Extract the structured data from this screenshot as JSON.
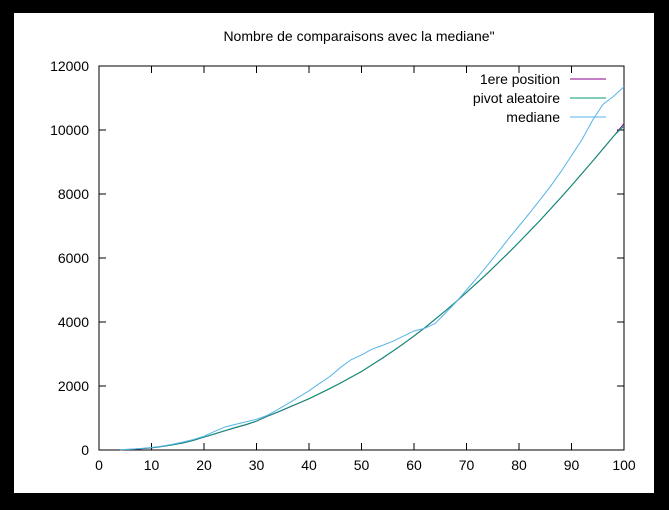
{
  "chart_data": {
    "type": "line",
    "title": "Nombre de comparaisons avec la mediane\"",
    "xlabel": "",
    "ylabel": "",
    "xlim": [
      0,
      100
    ],
    "ylim": [
      0,
      12000
    ],
    "xticks": [
      0,
      10,
      20,
      30,
      40,
      50,
      60,
      70,
      80,
      90,
      100
    ],
    "yticks": [
      0,
      2000,
      4000,
      6000,
      8000,
      10000,
      12000
    ],
    "grid": false,
    "legend_position": "top-right",
    "series": [
      {
        "name": "1ere position",
        "color": "#8b008b",
        "x": [
          4,
          6,
          8,
          10,
          12,
          14,
          16,
          18,
          20,
          22,
          24,
          26,
          28,
          30,
          32,
          34,
          36,
          38,
          40,
          42,
          44,
          46,
          48,
          50,
          52,
          54,
          56,
          58,
          60,
          62,
          64,
          66,
          68,
          70,
          72,
          74,
          76,
          78,
          80,
          82,
          84,
          86,
          88,
          90,
          92,
          94,
          96,
          98,
          100
        ],
        "y": [
          8,
          20,
          40,
          68,
          108,
          160,
          220,
          300,
          400,
          500,
          600,
          700,
          790,
          900,
          1050,
          1180,
          1320,
          1460,
          1600,
          1760,
          1920,
          2090,
          2270,
          2450,
          2660,
          2870,
          3090,
          3320,
          3560,
          3810,
          4080,
          4350,
          4630,
          4920,
          5220,
          5520,
          5840,
          6160,
          6490,
          6830,
          7170,
          7530,
          7890,
          8260,
          8640,
          9020,
          9410,
          9800,
          10200
        ]
      },
      {
        "name": "pivot aleatoire",
        "color": "#009e73",
        "x": [
          4,
          6,
          8,
          10,
          12,
          14,
          16,
          18,
          20,
          22,
          24,
          26,
          28,
          30,
          32,
          34,
          36,
          38,
          40,
          42,
          44,
          46,
          48,
          50,
          52,
          54,
          56,
          58,
          60,
          62,
          64,
          66,
          68,
          70,
          72,
          74,
          76,
          78,
          80,
          82,
          84,
          86,
          88,
          90,
          92,
          94,
          96,
          98,
          100
        ],
        "y": [
          9,
          22,
          42,
          70,
          110,
          162,
          224,
          306,
          404,
          505,
          605,
          706,
          796,
          905,
          1056,
          1186,
          1326,
          1466,
          1606,
          1766,
          1926,
          2096,
          2276,
          2456,
          2666,
          2876,
          3096,
          3326,
          3566,
          3816,
          4086,
          4356,
          4636,
          4926,
          5226,
          5526,
          5846,
          6166,
          6496,
          6836,
          7176,
          7536,
          7896,
          8266,
          8646,
          9026,
          9416,
          9806,
          10130
        ]
      },
      {
        "name": "mediane",
        "color": "#56b4e9",
        "x": [
          4,
          6,
          8,
          10,
          12,
          14,
          16,
          18,
          20,
          22,
          24,
          26,
          28,
          30,
          32,
          34,
          36,
          38,
          40,
          42,
          44,
          46,
          48,
          50,
          52,
          54,
          56,
          58,
          60,
          62,
          64,
          66,
          68,
          70,
          72,
          74,
          76,
          78,
          80,
          82,
          84,
          86,
          88,
          90,
          92,
          94,
          96,
          98,
          100
        ],
        "y": [
          10,
          24,
          48,
          80,
          120,
          180,
          250,
          330,
          430,
          580,
          720,
          800,
          880,
          960,
          1080,
          1260,
          1450,
          1650,
          1850,
          2080,
          2300,
          2580,
          2820,
          2970,
          3150,
          3270,
          3400,
          3560,
          3720,
          3800,
          3950,
          4280,
          4620,
          5000,
          5380,
          5770,
          6180,
          6600,
          7000,
          7400,
          7820,
          8240,
          8700,
          9200,
          9700,
          10300,
          10800,
          11050,
          11350
        ]
      }
    ]
  }
}
